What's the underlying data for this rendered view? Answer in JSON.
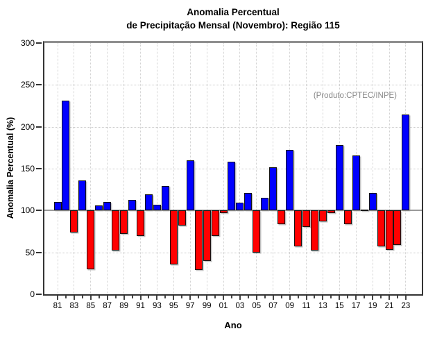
{
  "header": {
    "title_line1": "Anomalia Percentual",
    "title_line2": "de Precipitação Mensal (Novembro): Região 115"
  },
  "chart_data": {
    "type": "bar",
    "title": "Anomalia Percentual de Precipitação Mensal (Novembro): Região 115",
    "xlabel": "Ano",
    "ylabel": "Anomalia Percentual (%)",
    "annotation": "(Produto:CPTEC/INPE)",
    "ylim": [
      0,
      300
    ],
    "yticks": [
      0,
      50,
      100,
      150,
      200,
      250,
      300
    ],
    "reference_line": 100,
    "grid": true,
    "legend_position": "none",
    "bar_color_above": "#0000ff",
    "bar_color_below": "#ff0000",
    "annotation_color": "#8a8a8a",
    "x_tick_labels": [
      "81",
      "83",
      "85",
      "87",
      "89",
      "91",
      "93",
      "95",
      "97",
      "99",
      "01",
      "03",
      "05",
      "07",
      "09",
      "11",
      "13",
      "15",
      "17",
      "19",
      "21",
      "23"
    ],
    "years": [
      1981,
      1982,
      1983,
      1984,
      1985,
      1986,
      1987,
      1988,
      1989,
      1990,
      1991,
      1992,
      1993,
      1994,
      1995,
      1996,
      1997,
      1998,
      1999,
      2000,
      2001,
      2002,
      2003,
      2004,
      2005,
      2006,
      2007,
      2008,
      2009,
      2010,
      2011,
      2012,
      2013,
      2014,
      2015,
      2016,
      2017,
      2018,
      2019,
      2020,
      2021,
      2022,
      2023
    ],
    "values": [
      110,
      231,
      74,
      136,
      30,
      106,
      110,
      52,
      72,
      113,
      70,
      119,
      107,
      129,
      36,
      82,
      160,
      29,
      40,
      70,
      97,
      158,
      109,
      121,
      50,
      115,
      152,
      84,
      172,
      57,
      80,
      52,
      87,
      97,
      178,
      84,
      166,
      101,
      121,
      57,
      53,
      59,
      215
    ]
  }
}
